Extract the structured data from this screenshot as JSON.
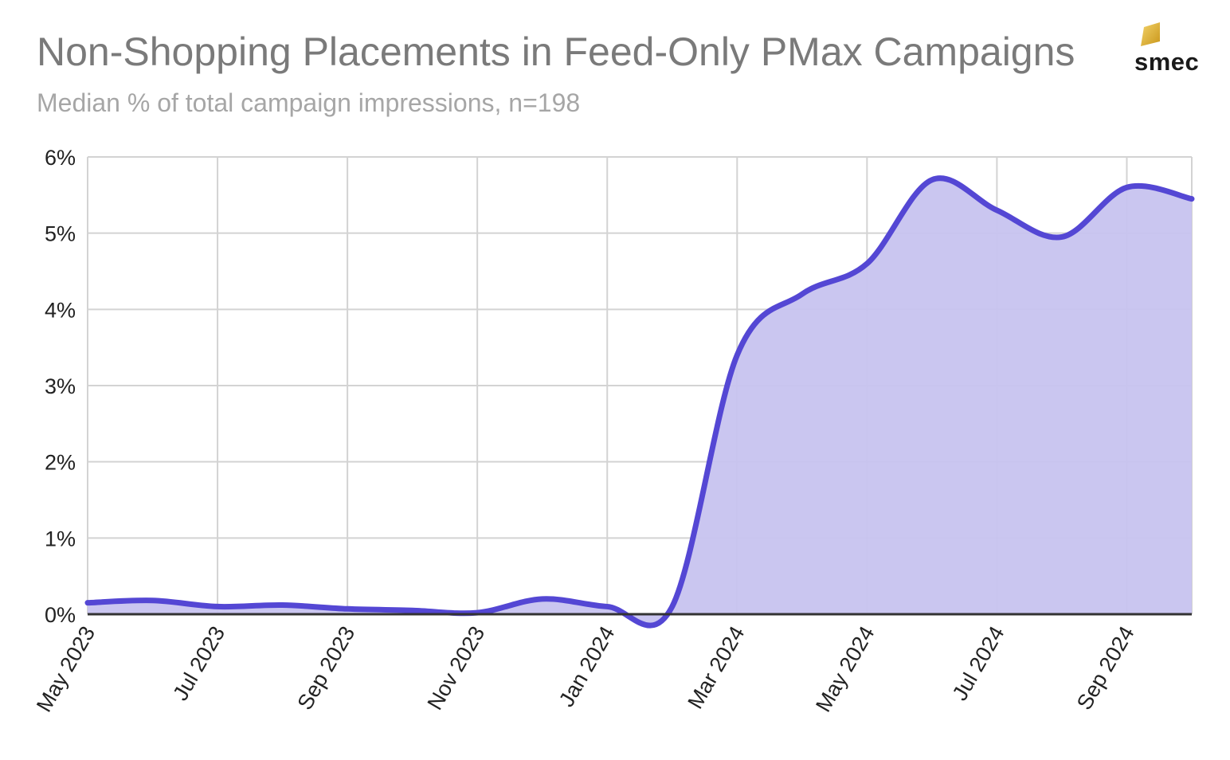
{
  "header": {
    "title": "Non-Shopping Placements in Feed-Only PMax Campaigns",
    "subtitle": "Median % of total campaign impressions, n=198"
  },
  "logo": {
    "text": "smec",
    "accent": "#d9a91a"
  },
  "colors": {
    "line": "#5447d4",
    "fill": "#c7c3ef",
    "grid": "#d3d3d3",
    "axis": "#333333"
  },
  "chart_data": {
    "type": "area",
    "title": "Non-Shopping Placements in Feed-Only PMax Campaigns",
    "subtitle": "Median % of total campaign impressions, n=198",
    "xlabel": "",
    "ylabel": "",
    "ylim": [
      0,
      6
    ],
    "yticks": [
      "0%",
      "1%",
      "2%",
      "3%",
      "4%",
      "5%",
      "6%"
    ],
    "xticks": [
      "May 2023",
      "Jul 2023",
      "Sep 2023",
      "Nov 2023",
      "Jan 2024",
      "Mar 2024",
      "May 2024",
      "Jul 2024",
      "Sep 2024"
    ],
    "grid": true,
    "series": [
      {
        "x": [
          "2023-05",
          "2023-06",
          "2023-07",
          "2023-08",
          "2023-09",
          "2023-10",
          "2023-11",
          "2023-12",
          "2024-01",
          "2024-02",
          "2024-03",
          "2024-04",
          "2024-05",
          "2024-06",
          "2024-07",
          "2024-08",
          "2024-09",
          "2024-10"
        ],
        "values": [
          0.15,
          0.18,
          0.1,
          0.12,
          0.07,
          0.05,
          0.02,
          0.2,
          0.1,
          0.1,
          3.4,
          4.2,
          4.6,
          5.7,
          5.3,
          4.95,
          5.6,
          5.45
        ]
      }
    ]
  }
}
